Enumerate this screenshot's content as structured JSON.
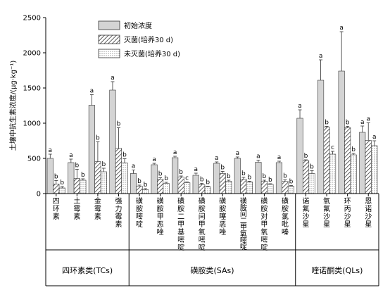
{
  "chart_data": {
    "type": "bar",
    "ylabel": "土壤中抗生素浓度/(μg·kg⁻¹)",
    "ylim": [
      0,
      2500
    ],
    "yticks": [
      0,
      500,
      1000,
      1500,
      2000,
      2500
    ],
    "grid": false,
    "legend_position": "top-left",
    "categories": [
      "四环素",
      "土霉素",
      "金霉素",
      "强力霉素",
      "磺胺嘧啶",
      "磺胺甲恶唑",
      "磺胺二甲基嘧啶",
      "磺胺间甲氧嘧啶",
      "磺胺噻恶唑",
      "磺胺间二甲氧嘧啶",
      "磺胺对甲氧嘧啶",
      "磺胺氯吡嗪",
      "诺氟沙星",
      "氧氟沙星",
      "环丙沙星",
      "恩诺沙星"
    ],
    "groups": [
      {
        "label": "四环素类(TCs)",
        "start": 0,
        "end": 3
      },
      {
        "label": "磺胺类(SAs)",
        "start": 4,
        "end": 11
      },
      {
        "label": "喹诺酮类(QLs)",
        "start": 12,
        "end": 15
      }
    ],
    "series": [
      {
        "name": "初始浓度",
        "values": [
          500,
          440,
          1255,
          1470,
          285,
          410,
          510,
          260,
          430,
          500,
          445,
          440,
          1070,
          1610,
          1740,
          870
        ],
        "errors": [
          60,
          50,
          150,
          120,
          50,
          20,
          20,
          30,
          20,
          20,
          30,
          20,
          120,
          290,
          560,
          90
        ],
        "letters": [
          "a",
          "a",
          "a",
          "a",
          "a",
          "a",
          "a",
          "a",
          "a",
          "a",
          "a",
          "a",
          "a",
          "a",
          "a",
          "a"
        ]
      },
      {
        "name": "灭菌(培养30 d)",
        "values": [
          135,
          215,
          455,
          645,
          105,
          205,
          235,
          125,
          285,
          205,
          175,
          175,
          470,
          945,
          935,
          755
        ],
        "errors": [
          50,
          130,
          280,
          290,
          15,
          20,
          15,
          20,
          30,
          25,
          15,
          20,
          10,
          10,
          20,
          250
        ],
        "letters": [
          "b",
          "b",
          "b",
          "b",
          "b",
          "b",
          "b",
          "b",
          "b",
          "b",
          "b",
          "b",
          "b",
          "b",
          "b",
          "a"
        ]
      },
      {
        "name": "未灭菌(培养30 d)",
        "values": [
          80,
          190,
          310,
          435,
          55,
          145,
          155,
          95,
          175,
          165,
          130,
          105,
          285,
          560,
          550,
          680
        ],
        "errors": [
          20,
          20,
          50,
          60,
          15,
          15,
          10,
          10,
          15,
          10,
          10,
          10,
          40,
          40,
          20,
          70
        ],
        "letters": [
          "b",
          "b",
          "b",
          "b",
          "b",
          "b",
          "c",
          "b",
          "b",
          "b",
          "b",
          "b",
          "b",
          "c",
          "b",
          "a"
        ]
      }
    ]
  }
}
